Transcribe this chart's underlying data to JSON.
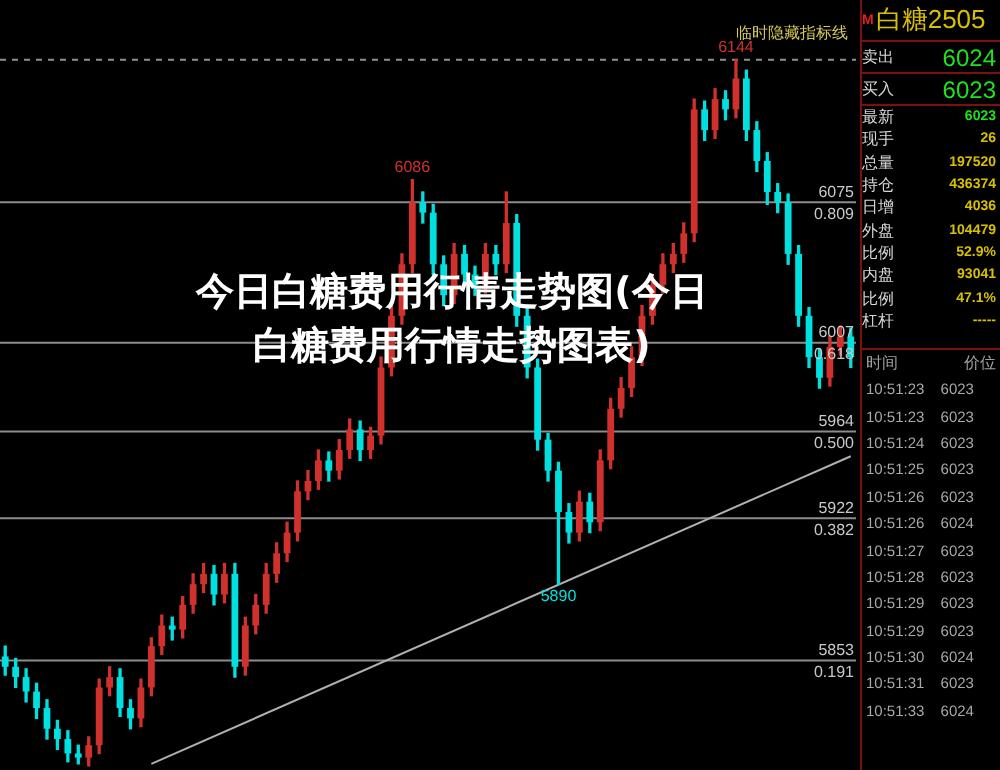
{
  "chart_data": [
    {
      "type": "candlestick",
      "title": "今日白糖费用行情走势图(今日白糖费用行情走势图表)",
      "categories": [
        null,
        null,
        null,
        null,
        null,
        null,
        null,
        null,
        null,
        null,
        null,
        null,
        null,
        null,
        null,
        null,
        null,
        null,
        null,
        null,
        null,
        null,
        null,
        null,
        null,
        null,
        null,
        null,
        null,
        null,
        null,
        null,
        null,
        null,
        null,
        null,
        null,
        null,
        null,
        null,
        null,
        null,
        null,
        null,
        null,
        null,
        null,
        null,
        null,
        null,
        null,
        null,
        null,
        null,
        null,
        null,
        null,
        null,
        null,
        null,
        null,
        null,
        null,
        null,
        null,
        null,
        null,
        null,
        null,
        null,
        null,
        null,
        null,
        null,
        null,
        null,
        null,
        null,
        null,
        null,
        null,
        null
      ],
      "ohlc": [
        [
          5855,
          5860,
          5846,
          5850
        ],
        [
          5850,
          5854,
          5840,
          5845
        ],
        [
          5845,
          5849,
          5833,
          5838
        ],
        [
          5838,
          5842,
          5825,
          5830
        ],
        [
          5830,
          5834,
          5815,
          5820
        ],
        [
          5820,
          5824,
          5810,
          5815
        ],
        [
          5815,
          5819,
          5804,
          5808
        ],
        [
          5808,
          5812,
          5803,
          5806
        ],
        [
          5806,
          5816,
          5802,
          5812
        ],
        [
          5812,
          5844,
          5808,
          5840
        ],
        [
          5840,
          5850,
          5836,
          5845
        ],
        [
          5845,
          5849,
          5826,
          5830
        ],
        [
          5830,
          5834,
          5820,
          5825
        ],
        [
          5825,
          5844,
          5821,
          5840
        ],
        [
          5840,
          5864,
          5836,
          5860
        ],
        [
          5860,
          5875,
          5856,
          5870
        ],
        [
          5870,
          5874,
          5863,
          5868
        ],
        [
          5868,
          5884,
          5864,
          5880
        ],
        [
          5880,
          5895,
          5876,
          5890
        ],
        [
          5890,
          5900,
          5886,
          5895
        ],
        [
          5895,
          5899,
          5880,
          5885
        ],
        [
          5885,
          5900,
          5881,
          5895
        ],
        [
          5895,
          5900,
          5845,
          5850
        ],
        [
          5850,
          5874,
          5846,
          5870
        ],
        [
          5870,
          5885,
          5866,
          5880
        ],
        [
          5880,
          5900,
          5876,
          5895
        ],
        [
          5895,
          5910,
          5891,
          5905
        ],
        [
          5905,
          5920,
          5901,
          5915
        ],
        [
          5915,
          5940,
          5911,
          5935
        ],
        [
          5935,
          5945,
          5931,
          5940
        ],
        [
          5940,
          5955,
          5936,
          5950
        ],
        [
          5950,
          5954,
          5940,
          5945
        ],
        [
          5945,
          5960,
          5941,
          5955
        ],
        [
          5955,
          5970,
          5951,
          5965
        ],
        [
          5965,
          5969,
          5950,
          5955
        ],
        [
          5955,
          5966,
          5951,
          5962
        ],
        [
          5962,
          6000,
          5958,
          5995
        ],
        [
          5995,
          6025,
          5991,
          6020
        ],
        [
          6020,
          6050,
          6016,
          6045
        ],
        [
          6045,
          6086,
          6041,
          6075
        ],
        [
          6075,
          6080,
          6065,
          6070
        ],
        [
          6070,
          6074,
          6040,
          6045
        ],
        [
          6045,
          6049,
          6025,
          6030
        ],
        [
          6030,
          6055,
          6026,
          6050
        ],
        [
          6050,
          6054,
          6035,
          6040
        ],
        [
          6040,
          6044,
          6030,
          6035
        ],
        [
          6035,
          6055,
          6031,
          6050
        ],
        [
          6050,
          6054,
          6040,
          6045
        ],
        [
          6045,
          6080,
          6041,
          6065
        ],
        [
          6065,
          6069,
          6015,
          6020
        ],
        [
          6020,
          6024,
          5990,
          5995
        ],
        [
          5995,
          5999,
          5955,
          5960
        ],
        [
          5960,
          5963,
          5940,
          5945
        ],
        [
          5945,
          5949,
          5890,
          5925
        ],
        [
          5925,
          5929,
          5910,
          5915
        ],
        [
          5915,
          5935,
          5911,
          5930
        ],
        [
          5930,
          5934,
          5915,
          5920
        ],
        [
          5920,
          5955,
          5916,
          5950
        ],
        [
          5950,
          5980,
          5946,
          5975
        ],
        [
          5975,
          5990,
          5971,
          5985
        ],
        [
          5985,
          6005,
          5981,
          6000
        ],
        [
          6000,
          6025,
          5996,
          6020
        ],
        [
          6020,
          6040,
          6016,
          6035
        ],
        [
          6035,
          6050,
          6031,
          6045
        ],
        [
          6045,
          6055,
          6041,
          6050
        ],
        [
          6050,
          6065,
          6046,
          6060
        ],
        [
          6060,
          6125,
          6056,
          6120
        ],
        [
          6120,
          6124,
          6105,
          6110
        ],
        [
          6110,
          6130,
          6106,
          6125
        ],
        [
          6125,
          6129,
          6115,
          6120
        ],
        [
          6120,
          6144,
          6116,
          6135
        ],
        [
          6135,
          6139,
          6105,
          6110
        ],
        [
          6110,
          6114,
          6090,
          6095
        ],
        [
          6095,
          6099,
          6074,
          6080
        ],
        [
          6080,
          6084,
          6070,
          6075
        ],
        [
          6075,
          6079,
          6045,
          6050
        ],
        [
          6050,
          6054,
          6015,
          6020
        ],
        [
          6020,
          6024,
          5995,
          6000
        ],
        [
          6000,
          6004,
          5985,
          5990
        ],
        [
          5990,
          6010,
          5986,
          6005
        ],
        [
          6005,
          6015,
          6001,
          6010
        ],
        [
          6010,
          6014,
          5995,
          6000
        ]
      ],
      "colors": [
        "#00e0e0",
        "#00e0e0",
        "#00e0e0",
        "#00e0e0",
        "#00e0e0",
        "#00e0e0",
        "#00e0e0",
        "#00e0e0",
        "#d0312d",
        "#d0312d",
        "#d0312d",
        "#00e0e0",
        "#00e0e0",
        "#d0312d",
        "#d0312d",
        "#d0312d",
        "#00e0e0",
        "#d0312d",
        "#d0312d",
        "#d0312d",
        "#00e0e0",
        "#d0312d",
        "#00e0e0",
        "#d0312d",
        "#d0312d",
        "#d0312d",
        "#d0312d",
        "#d0312d",
        "#d0312d",
        "#d0312d",
        "#d0312d",
        "#00e0e0",
        "#d0312d",
        "#d0312d",
        "#00e0e0",
        "#d0312d",
        "#d0312d",
        "#d0312d",
        "#d0312d",
        "#d0312d",
        "#00e0e0",
        "#00e0e0",
        "#00e0e0",
        "#d0312d",
        "#00e0e0",
        "#00e0e0",
        "#d0312d",
        "#00e0e0",
        "#d0312d",
        "#00e0e0",
        "#00e0e0",
        "#00e0e0",
        "#00e0e0",
        "#00e0e0",
        "#00e0e0",
        "#d0312d",
        "#00e0e0",
        "#d0312d",
        "#d0312d",
        "#d0312d",
        "#d0312d",
        "#d0312d",
        "#d0312d",
        "#d0312d",
        "#d0312d",
        "#d0312d",
        "#d0312d",
        "#00e0e0",
        "#d0312d",
        "#00e0e0",
        "#d0312d",
        "#00e0e0",
        "#00e0e0",
        "#00e0e0",
        "#00e0e0",
        "#00e0e0",
        "#00e0e0",
        "#00e0e0",
        "#00e0e0",
        "#d0312d",
        "#d0312d",
        "#00e0e0"
      ],
      "series": [
        {
          "type": "line",
          "color": "#b0b0b0",
          "values": [
            null,
            null,
            null,
            null,
            null,
            null,
            null,
            null,
            null,
            null,
            null,
            null,
            null,
            null,
            5803,
            null,
            null,
            null,
            null,
            null,
            null,
            null,
            null,
            null,
            null,
            null,
            null,
            null,
            null,
            null,
            null,
            null,
            null,
            null,
            null,
            null,
            null,
            null,
            null,
            null,
            null,
            null,
            null,
            null,
            null,
            null,
            null,
            null,
            null,
            null,
            null,
            null,
            null,
            null,
            null,
            null,
            null,
            null,
            null,
            null,
            null,
            null,
            null,
            null,
            null,
            null,
            null,
            null,
            null,
            null,
            null,
            null,
            null,
            null,
            null,
            null,
            null,
            null,
            null,
            null,
            null,
            5952
          ]
        }
      ],
      "ylim": [
        5800,
        6173
      ],
      "tick_labels": false,
      "grid": false,
      "legend": false,
      "ref_lines": [
        {
          "axis": "y",
          "value": 6144,
          "line_style": "dashed",
          "color": "#909090"
        },
        {
          "axis": "y",
          "value": 6075,
          "label": "6075",
          "color": "#8c8c8c"
        },
        {
          "axis": "y",
          "value": 6007,
          "label": "6007",
          "color": "#8c8c8c"
        },
        {
          "axis": "y",
          "value": 5964,
          "label": "5964",
          "color": "#8c8c8c"
        },
        {
          "axis": "y",
          "value": 5922,
          "label": "5922",
          "color": "#8c8c8c"
        },
        {
          "axis": "y",
          "value": 5853,
          "label": "5853",
          "color": "#8c8c8c"
        }
      ],
      "annotations": [
        "临时隐藏指标线",
        {
          "text": "6086",
          "y": 6086
        },
        {
          "text": "6144",
          "y": 6144
        },
        {
          "text": "5890",
          "y": 5890
        },
        {
          "text": "0.809",
          "y": 6075
        },
        {
          "text": "0.618",
          "y": 6007
        },
        {
          "text": "0.500",
          "y": 5964
        },
        {
          "text": "0.382",
          "y": 5922
        },
        {
          "text": "0.191",
          "y": 5853
        }
      ]
    },
    {
      "type": "other",
      "title": "白糖2505",
      "categories": [
        "卖出",
        "买入",
        "最新",
        "现手",
        "总量",
        "持仓",
        "日增",
        "外盘",
        "比例",
        "内盘",
        "比例",
        "杠杆"
      ],
      "value_labels": [
        "6024",
        "6023",
        "6023",
        "26",
        "197520",
        "436374",
        "4036",
        "104479",
        "52.9%",
        "93041",
        "47.1%",
        "-----"
      ],
      "annotations": [
        "M",
        "时间",
        "价位",
        "10:51:23 6023",
        "10:51:23 6023",
        "10:51:24 6023",
        "10:51:25 6023",
        "10:51:26 6023",
        "10:51:26 6024",
        "10:51:27 6023",
        "10:51:28 6023",
        "10:51:29 6023",
        "10:51:29 6023",
        "10:51:30 6024",
        "10:51:31 6023",
        "10:51:33 6024"
      ]
    }
  ]
}
